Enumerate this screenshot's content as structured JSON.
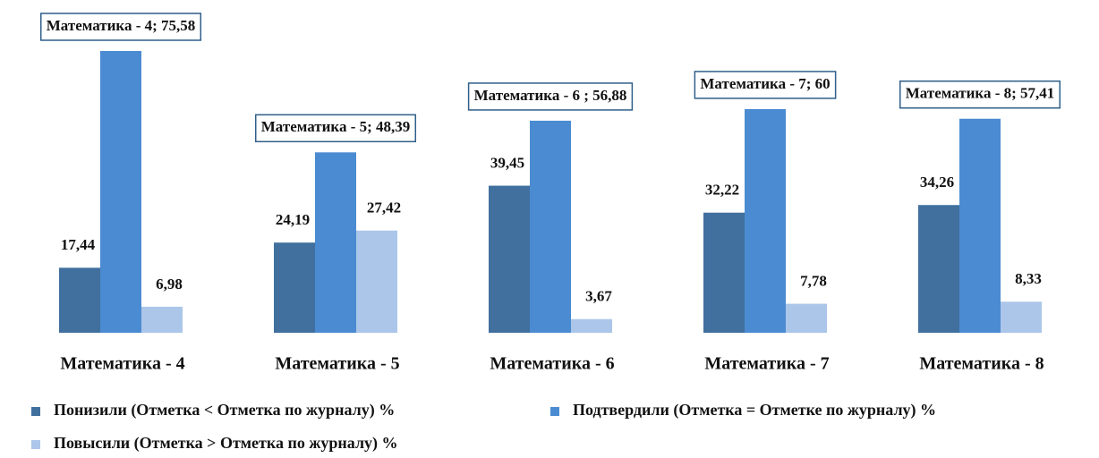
{
  "chart_data": {
    "type": "bar",
    "categories": [
      "Математика - 4",
      "Математика - 5",
      "Математика - 6",
      "Математика - 7",
      "Математика - 8"
    ],
    "series": [
      {
        "name": "Понизили (Отметка < Отметка по журналу) %",
        "color": "#41709f",
        "values": [
          17.44,
          24.19,
          39.45,
          32.22,
          34.26
        ],
        "value_labels": [
          "17,44",
          "24,19",
          "39,45",
          "32,22",
          "34,26"
        ]
      },
      {
        "name": "Подтвердили (Отметка = Отметке по журналу) %",
        "color": "#4b8bd1",
        "values": [
          75.58,
          48.39,
          56.88,
          60,
          57.41
        ],
        "value_labels": [
          "Математика - 4; 75,58",
          "Математика - 5; 48,39",
          "Математика - 6 ; 56,88",
          "Математика - 7; 60",
          "Математика - 8; 57,41"
        ]
      },
      {
        "name": "Повысили (Отметка > Отметка по журналу) %",
        "color": "#abc6e9",
        "values": [
          6.98,
          27.42,
          3.67,
          7.78,
          8.33
        ],
        "value_labels": [
          "6,98",
          "27,42",
          "3,67",
          "7,78",
          "8,33"
        ]
      }
    ]
  }
}
